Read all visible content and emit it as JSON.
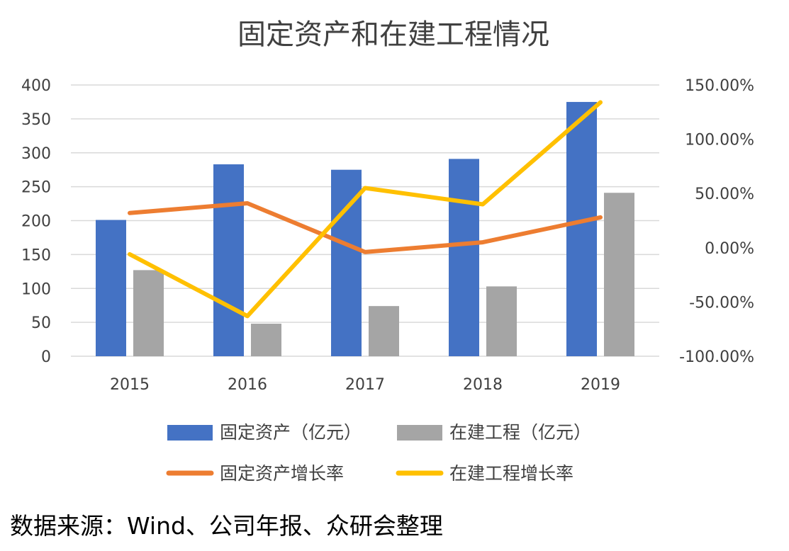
{
  "chart_data": {
    "type": "bar",
    "title": "固定资产和在建工程情况",
    "categories": [
      "2015",
      "2016",
      "2017",
      "2018",
      "2019"
    ],
    "series": [
      {
        "name": "固定资产（亿元）",
        "kind": "bar",
        "axis": "left",
        "color": "#4472C4",
        "values": [
          201,
          283,
          275,
          291,
          375
        ]
      },
      {
        "name": "在建工程（亿元）",
        "kind": "bar",
        "axis": "left",
        "color": "#A5A5A5",
        "values": [
          127,
          48,
          74,
          103,
          241
        ]
      },
      {
        "name": "固定资产增长率",
        "kind": "line",
        "axis": "right",
        "color": "#ED7D31",
        "values": [
          32,
          41,
          -4,
          5,
          28
        ]
      },
      {
        "name": "在建工程增长率",
        "kind": "line",
        "axis": "right",
        "color": "#FFC000",
        "values": [
          -6,
          -63,
          55,
          40,
          134
        ]
      }
    ],
    "y_left": {
      "min": 0,
      "max": 400,
      "ticks": [
        "0",
        "50",
        "100",
        "150",
        "200",
        "250",
        "300",
        "350",
        "400"
      ]
    },
    "y_right": {
      "min": -100,
      "max": 150,
      "unit": "percent",
      "ticks": [
        "-100.00%",
        "-50.00%",
        "0.00%",
        "50.00%",
        "100.00%",
        "150.00%"
      ]
    },
    "grid": true,
    "legend_position": "bottom"
  },
  "source_note": "数据来源：Wind、公司年报、众研会整理"
}
